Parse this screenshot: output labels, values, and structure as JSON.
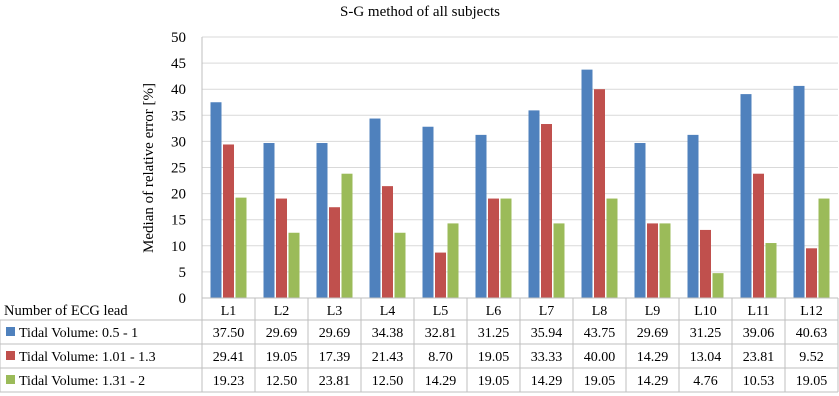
{
  "chart_data": {
    "type": "bar",
    "title": "S-G method of all subjects",
    "ylabel": "Median of relative error [%]",
    "xlabel": "Number of ECG lead",
    "ylim": [
      0,
      50
    ],
    "yticks": [
      0,
      5,
      10,
      15,
      20,
      25,
      30,
      35,
      40,
      45,
      50
    ],
    "grid": true,
    "legend": "data-table",
    "categories": [
      "L1",
      "L2",
      "L3",
      "L4",
      "L5",
      "L6",
      "L7",
      "L8",
      "L9",
      "L10",
      "L11",
      "L12"
    ],
    "series": [
      {
        "name": "Tidal Volume: 0.5 - 1",
        "color": "#4F81BD",
        "values": [
          37.5,
          29.69,
          29.69,
          34.38,
          32.81,
          31.25,
          35.94,
          43.75,
          29.69,
          31.25,
          39.06,
          40.63
        ],
        "labels": [
          "37.50",
          "29.69",
          "29.69",
          "34.38",
          "32.81",
          "31.25",
          "35.94",
          "43.75",
          "29.69",
          "31.25",
          "39.06",
          "40.63"
        ]
      },
      {
        "name": "Tidal Volume: 1.01 - 1.3",
        "color": "#C0504D",
        "values": [
          29.41,
          19.05,
          17.39,
          21.43,
          8.7,
          19.05,
          33.33,
          40.0,
          14.29,
          13.04,
          23.81,
          9.52
        ],
        "labels": [
          "29.41",
          "19.05",
          "17.39",
          "21.43",
          "8.70",
          "19.05",
          "33.33",
          "40.00",
          "14.29",
          "13.04",
          "23.81",
          "9.52"
        ]
      },
      {
        "name": "Tidal Volume: 1.31 - 2",
        "color": "#9BBB59",
        "values": [
          19.23,
          12.5,
          23.81,
          12.5,
          14.29,
          19.05,
          14.29,
          19.05,
          14.29,
          4.76,
          10.53,
          19.05
        ],
        "labels": [
          "19.23",
          "12.50",
          "23.81",
          "12.50",
          "14.29",
          "19.05",
          "14.29",
          "19.05",
          "14.29",
          "4.76",
          "10.53",
          "19.05"
        ]
      }
    ]
  }
}
